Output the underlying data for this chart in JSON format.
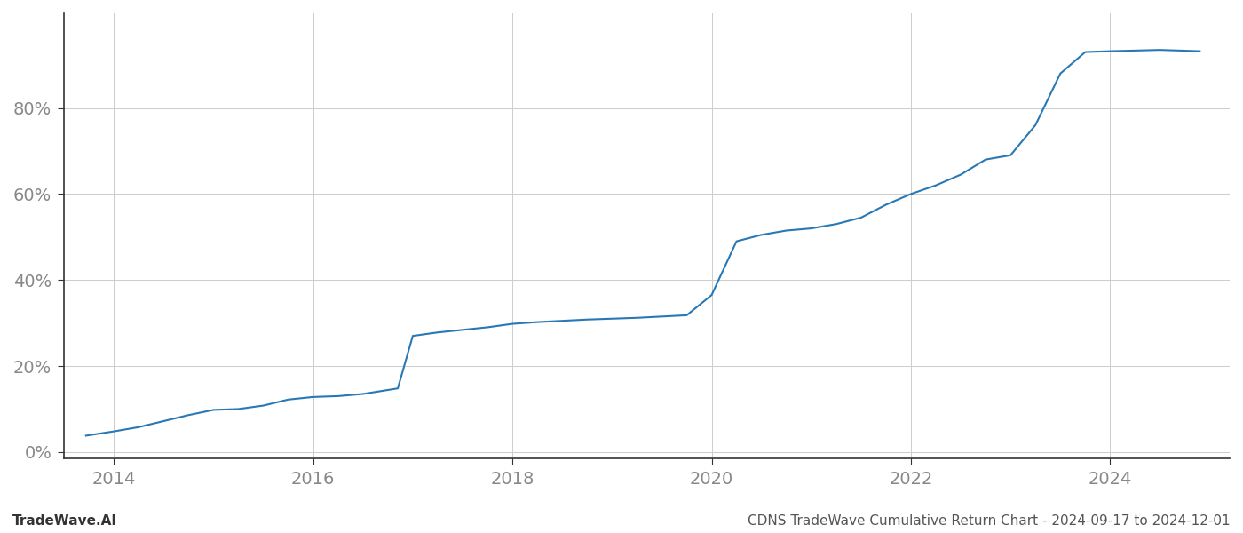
{
  "title": "CDNS TradeWave Cumulative Return Chart - 2024-09-17 to 2024-12-01",
  "watermark": "TradeWave.AI",
  "line_color": "#2878b5",
  "line_width": 1.5,
  "background_color": "#ffffff",
  "grid_color": "#cccccc",
  "x_values": [
    2013.72,
    2014.0,
    2014.25,
    2014.5,
    2014.75,
    2015.0,
    2015.25,
    2015.5,
    2015.75,
    2016.0,
    2016.25,
    2016.5,
    2016.85,
    2017.0,
    2017.25,
    2017.5,
    2017.75,
    2018.0,
    2018.25,
    2018.5,
    2018.75,
    2019.0,
    2019.25,
    2019.5,
    2019.75,
    2020.0,
    2020.25,
    2020.5,
    2020.75,
    2021.0,
    2021.25,
    2021.5,
    2021.75,
    2022.0,
    2022.25,
    2022.5,
    2022.75,
    2023.0,
    2023.25,
    2023.5,
    2023.75,
    2024.0,
    2024.5,
    2024.9
  ],
  "y_values": [
    0.038,
    0.048,
    0.058,
    0.072,
    0.086,
    0.098,
    0.1,
    0.108,
    0.122,
    0.128,
    0.13,
    0.135,
    0.148,
    0.27,
    0.278,
    0.284,
    0.29,
    0.298,
    0.302,
    0.305,
    0.308,
    0.31,
    0.312,
    0.315,
    0.318,
    0.365,
    0.49,
    0.505,
    0.515,
    0.52,
    0.53,
    0.545,
    0.575,
    0.6,
    0.62,
    0.645,
    0.68,
    0.69,
    0.76,
    0.88,
    0.93,
    0.932,
    0.935,
    0.932
  ],
  "xlim": [
    2013.5,
    2025.2
  ],
  "ylim": [
    -0.015,
    1.02
  ],
  "xticks": [
    2014,
    2016,
    2018,
    2020,
    2022,
    2024
  ],
  "yticks": [
    0.0,
    0.2,
    0.4,
    0.6,
    0.8
  ],
  "ytick_labels": [
    "0%",
    "20%",
    "40%",
    "60%",
    "80%"
  ],
  "tick_color": "#888888",
  "tick_fontsize": 14,
  "footer_fontsize": 11,
  "spine_color": "#333333"
}
